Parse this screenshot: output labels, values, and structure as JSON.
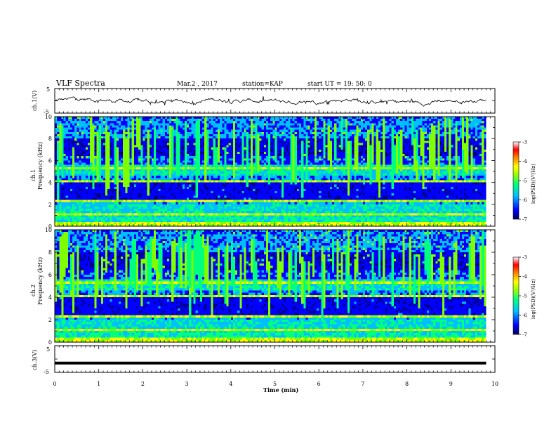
{
  "header": {
    "title": "VLF Spectra",
    "date": "Mar.2 , 2017",
    "station": "station=KAP",
    "start_ut": "start UT =  19: 50: 0"
  },
  "chart_data": [
    {
      "type": "line",
      "panel": "ch1-waveform",
      "ylabel": "ch.1(V)",
      "ylim": [
        -5,
        5
      ],
      "y_ticks": [
        "5",
        "-5"
      ],
      "xlim": [
        0,
        10
      ],
      "series": [
        {
          "values_description_only": false,
          "x_range": [
            0,
            9.8
          ],
          "y_min": -1.5,
          "y_max": 1.5
        }
      ]
    },
    {
      "type": "heatmap",
      "panel": "ch1-spectrogram",
      "ylabel": "ch.1\nFrequency (kHz)",
      "ylabel_lines": [
        "ch.1",
        "Frequency (kHz)"
      ],
      "ylim": [
        0,
        10
      ],
      "y_ticks": [
        "0",
        "2",
        "4",
        "6",
        "8",
        "10"
      ],
      "xlim": [
        0,
        10
      ],
      "data_x_end": 9.8,
      "colorbar": {
        "label": "log(PSD)(V²/Hz)",
        "range": [
          -7,
          -3
        ],
        "ticks": [
          "-3",
          "-4",
          "-5",
          "-6",
          "-7"
        ]
      }
    },
    {
      "type": "heatmap",
      "panel": "ch2-spectrogram",
      "ylabel_lines": [
        "ch.2",
        "Frequency (kHz)"
      ],
      "ylim": [
        0,
        10
      ],
      "y_ticks": [
        "0",
        "2",
        "4",
        "6",
        "8",
        "10"
      ],
      "xlim": [
        0,
        10
      ],
      "data_x_end": 9.8,
      "colorbar": {
        "label": "log(PSD)(V²/Hz)",
        "range": [
          -7,
          -3
        ],
        "ticks": [
          "-3",
          "-4",
          "-5",
          "-6",
          "-7"
        ]
      }
    },
    {
      "type": "line",
      "panel": "ch3-waveform",
      "ylabel": "ch.3(V)",
      "ylim": [
        -5,
        5
      ],
      "y_ticks": [
        "5",
        "-5"
      ],
      "xlim": [
        0,
        10
      ],
      "series": [
        {
          "x_range": [
            0,
            9.8
          ],
          "y_value": -1.5
        }
      ]
    }
  ],
  "x_axis": {
    "label": "Time (min)",
    "ticks": [
      "0",
      "1",
      "2",
      "3",
      "4",
      "5",
      "6",
      "7",
      "8",
      "9",
      "10"
    ]
  },
  "colors": {
    "colormap": [
      "#00008b",
      "#0000ff",
      "#00bfff",
      "#00ff7f",
      "#7fff00",
      "#ffff00",
      "#ff7f00",
      "#ff0000",
      "#ffffff"
    ],
    "trace": "#000000"
  }
}
